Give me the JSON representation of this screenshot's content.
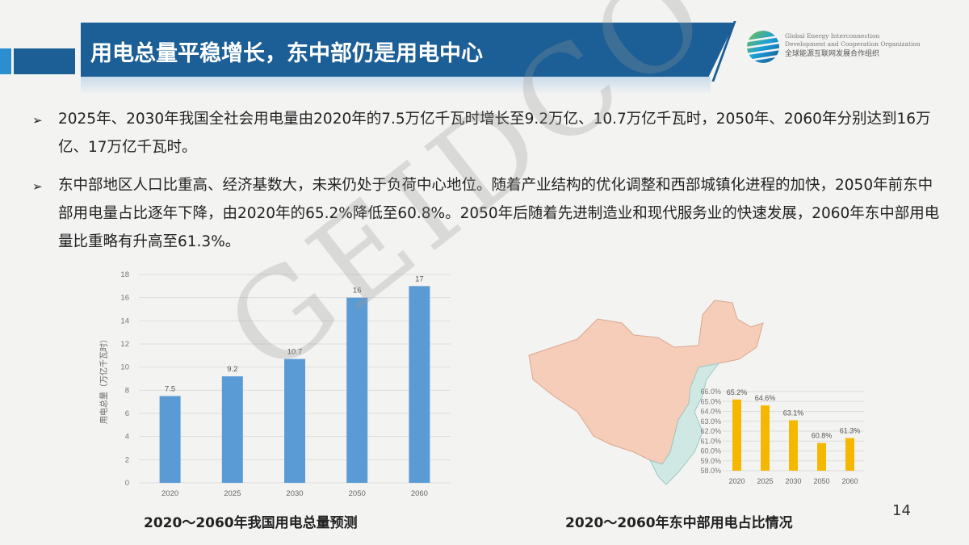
{
  "header": {
    "title": "用电总量平稳增长，东中部仍是用电中心",
    "logo": {
      "en_line1": "Global Energy Interconnection",
      "en_line2": "Development and Cooperation Organization",
      "cn": "全球能源互联网发展合作组织"
    }
  },
  "watermark": "GEIDCO",
  "bullets": [
    "2025年、2030年我国全社会用电量由2020年的7.5万亿千瓦时增长至9.2万亿、10.7万亿千瓦时，2050年、2060年分别达到16万亿、17万亿千瓦时。",
    "东中部地区人口比重高、经济基数大，未来仍处于负荷中心地位。随着产业结构的优化调整和西部城镇化进程的加快，2050年前东中部用电量占比逐年下降，由2020年的65.2%降低至60.8%。2050年后随着先进制造业和现代服务业的快速发展，2060年东中部用电量比重略有升高至61.3%。"
  ],
  "bullet_marker": "➢",
  "chart_data": [
    {
      "type": "bar",
      "title": "2020～2060年我国用电总量预测",
      "ylabel": "用电总量（万亿千瓦时）",
      "xlabel": "",
      "categories": [
        "2020",
        "2025",
        "2030",
        "2050",
        "2060"
      ],
      "values": [
        7.5,
        9.2,
        10.7,
        16,
        17
      ],
      "value_labels": [
        "7.5",
        "9.2",
        "10.7",
        "16",
        "17"
      ],
      "ylim": [
        0,
        18
      ],
      "yticks": [
        "0",
        "2",
        "4",
        "6",
        "8",
        "10",
        "12",
        "14",
        "16",
        "18"
      ],
      "grid": true,
      "color": "#5b9bd5"
    },
    {
      "type": "bar",
      "title": "2020～2060年东中部用电占比情况",
      "ylabel": "",
      "xlabel": "",
      "categories": [
        "2020",
        "2025",
        "2030",
        "2050",
        "2060"
      ],
      "values": [
        65.2,
        64.6,
        63.1,
        60.8,
        61.3
      ],
      "value_labels": [
        "65.2%",
        "64.6%",
        "63.1%",
        "60.8%",
        "61.3%"
      ],
      "ylim": [
        58,
        66
      ],
      "yticks": [
        "58.0%",
        "59.0%",
        "60.0%",
        "61.0%",
        "62.0%",
        "63.0%",
        "64.0%",
        "65.0%",
        "66.0%"
      ],
      "grid": true,
      "color": "#f5b800",
      "map_colors": {
        "west": "#f5cdb8",
        "east_central": "#cfe8e4"
      }
    }
  ],
  "page_number": "14"
}
